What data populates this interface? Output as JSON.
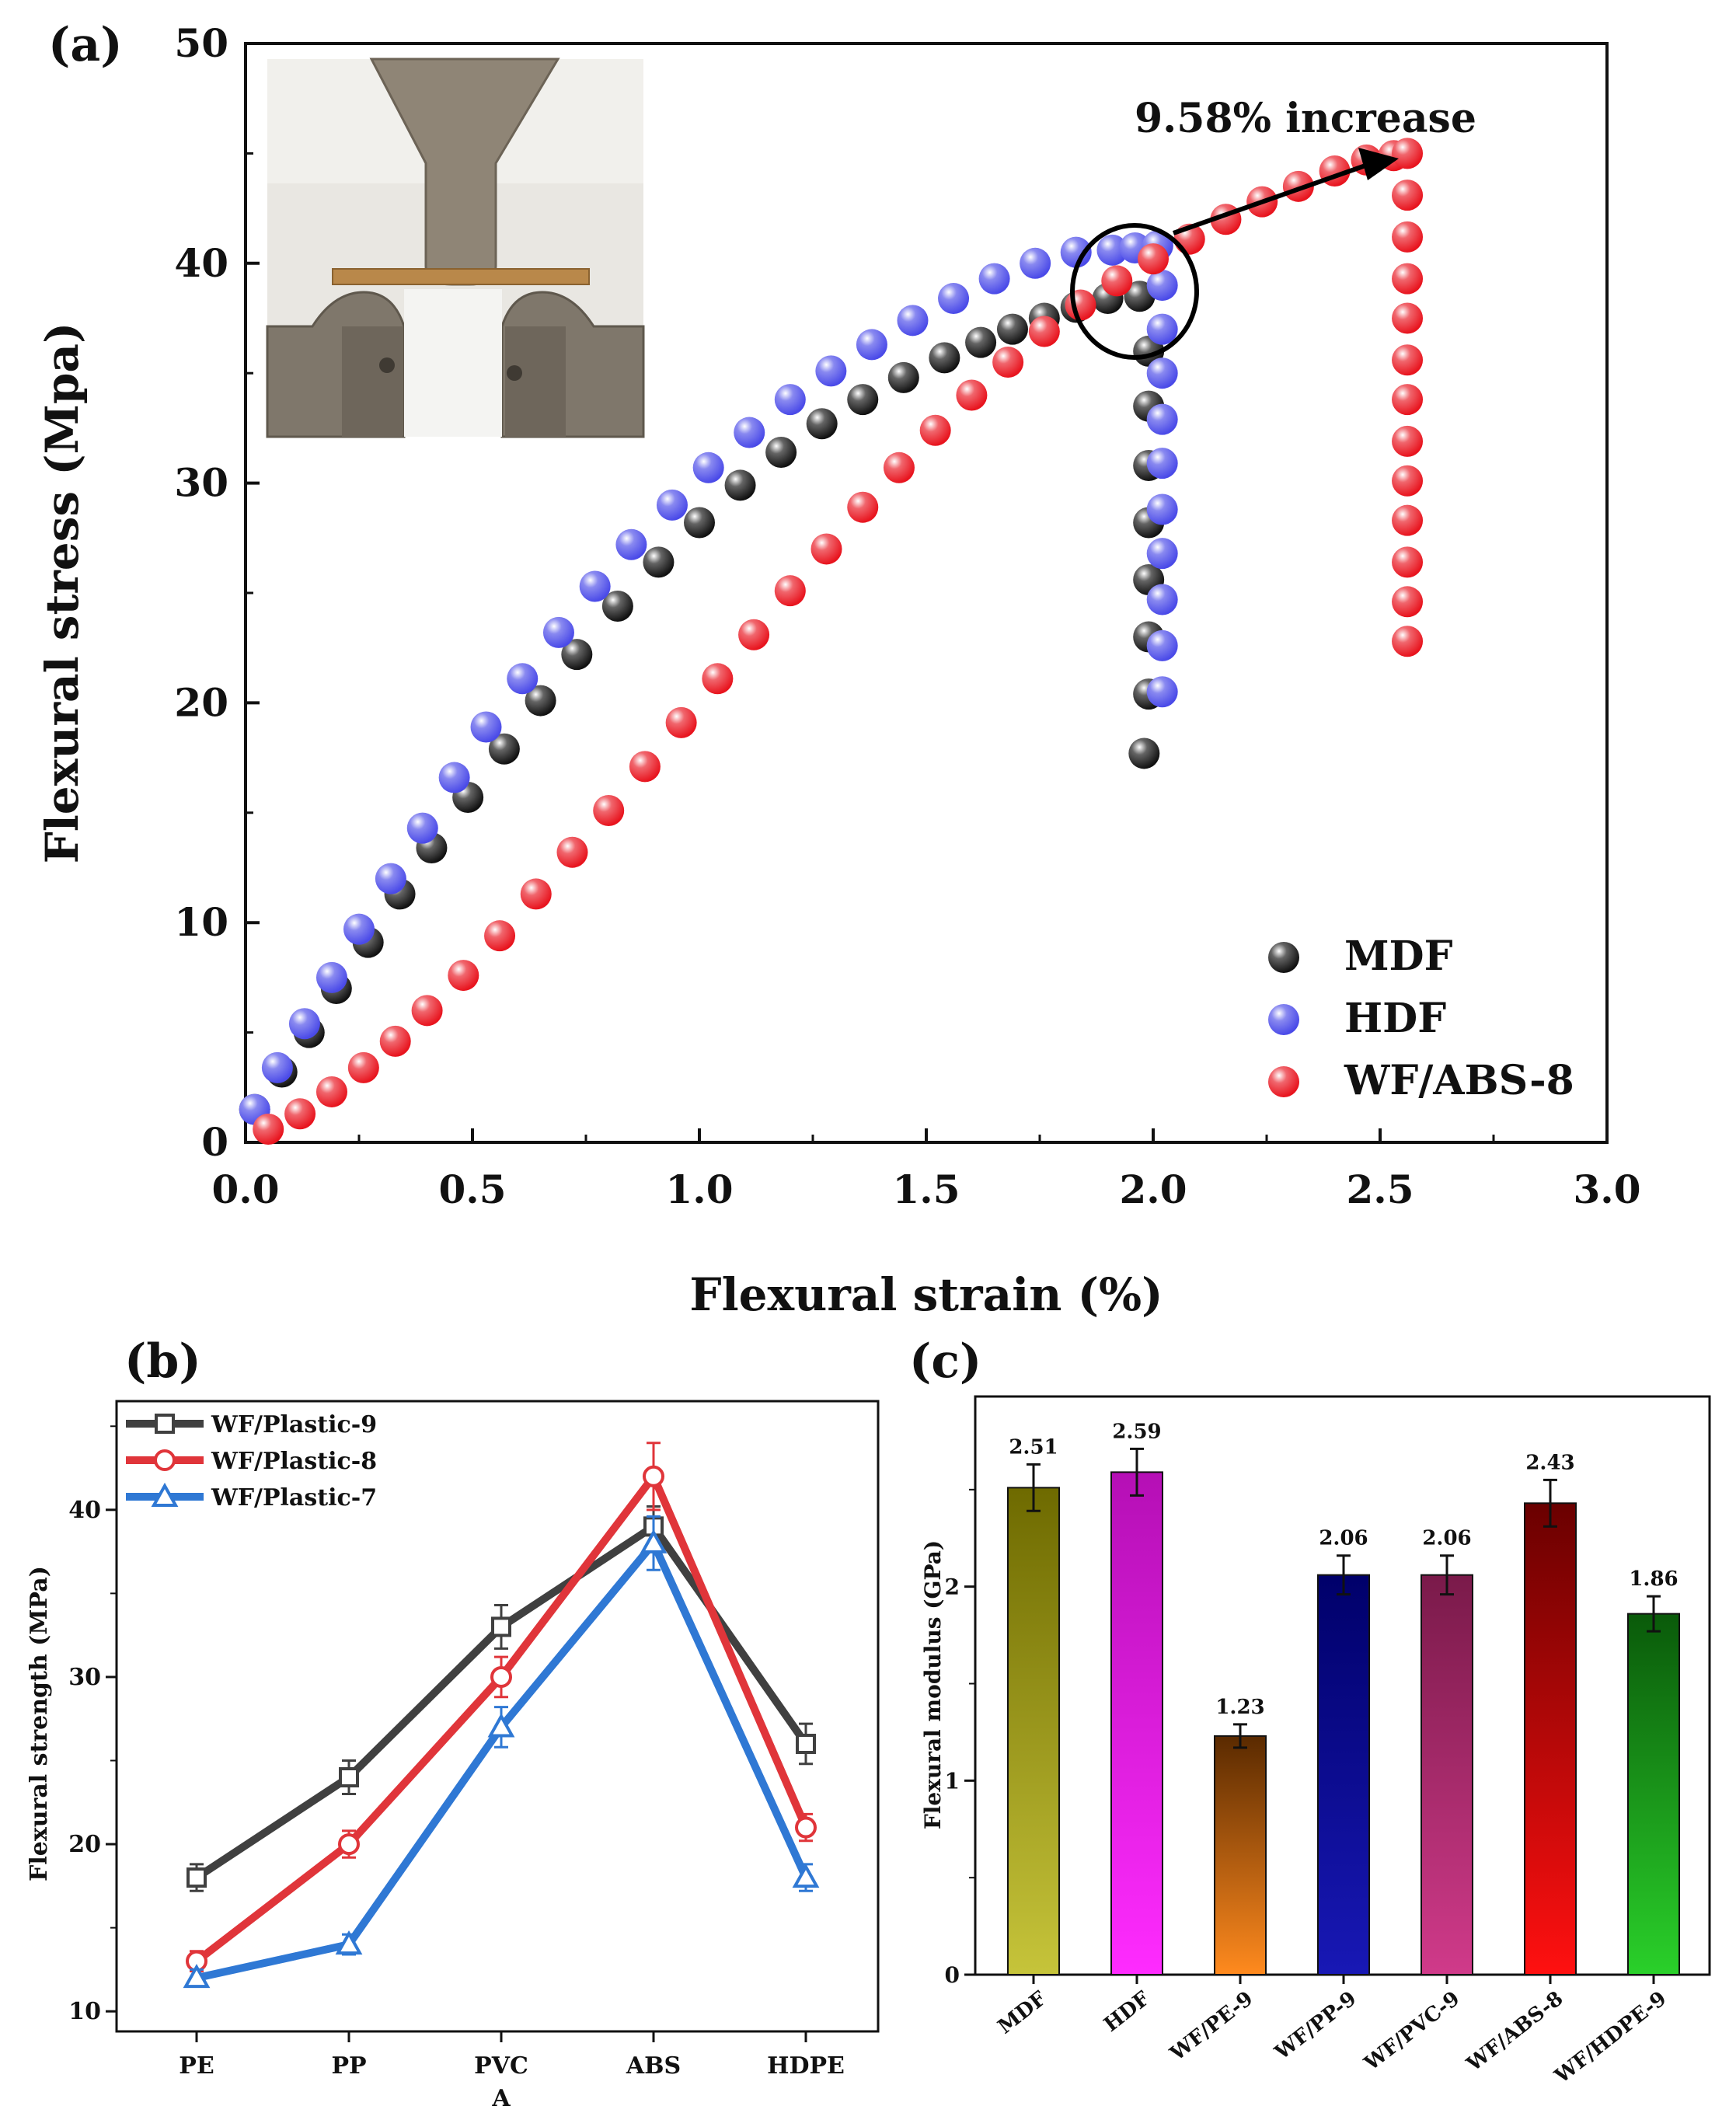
{
  "panels": {
    "a_label": "(a)",
    "b_label": "(b)",
    "c_label": "(c)"
  },
  "chart_data": [
    {
      "panel": "(a)",
      "type": "scatter",
      "title": "",
      "xlabel": "Flexural strain (%)",
      "ylabel": "Flexural stress (Mpa)",
      "xlim": [
        0,
        3.0
      ],
      "ylim": [
        0,
        50
      ],
      "xticks": [
        "0.0",
        "0.5",
        "1.0",
        "1.5",
        "2.0",
        "2.5",
        "3.0"
      ],
      "yticks": [
        "0",
        "10",
        "20",
        "30",
        "40",
        "50"
      ],
      "annotation": "9.58% increase",
      "inset": "photo of three-point bending test fixture with specimen",
      "legend_position": "bottom-right",
      "series": [
        {
          "name": "MDF",
          "color": "#111111",
          "x": [
            0.02,
            0.08,
            0.14,
            0.2,
            0.27,
            0.34,
            0.41,
            0.49,
            0.57,
            0.65,
            0.73,
            0.82,
            0.91,
            1.0,
            1.09,
            1.18,
            1.27,
            1.36,
            1.45,
            1.54,
            1.62,
            1.69,
            1.76,
            1.83,
            1.9,
            1.97,
            1.99,
            1.99,
            1.99,
            1.99,
            1.99,
            1.99,
            1.99,
            1.98
          ],
          "y": [
            1.5,
            3.2,
            5.0,
            7.0,
            9.1,
            11.3,
            13.4,
            15.7,
            17.9,
            20.1,
            22.2,
            24.4,
            26.4,
            28.2,
            29.9,
            31.4,
            32.7,
            33.8,
            34.8,
            35.7,
            36.4,
            37.0,
            37.5,
            38.0,
            38.4,
            38.5,
            36.0,
            33.5,
            30.8,
            28.2,
            25.6,
            23.0,
            20.4,
            17.7
          ]
        },
        {
          "name": "HDF",
          "color": "#4a4ae8",
          "x": [
            0.02,
            0.07,
            0.13,
            0.19,
            0.25,
            0.32,
            0.39,
            0.46,
            0.53,
            0.61,
            0.69,
            0.77,
            0.85,
            0.94,
            1.02,
            1.11,
            1.2,
            1.29,
            1.38,
            1.47,
            1.56,
            1.65,
            1.74,
            1.83,
            1.91,
            1.96,
            2.01,
            2.02,
            2.02,
            2.02,
            2.02,
            2.02,
            2.02,
            2.02,
            2.02,
            2.02,
            2.02
          ],
          "y": [
            1.5,
            3.4,
            5.4,
            7.5,
            9.7,
            12.0,
            14.3,
            16.6,
            18.9,
            21.1,
            23.2,
            25.3,
            27.2,
            29.0,
            30.7,
            32.3,
            33.8,
            35.1,
            36.3,
            37.4,
            38.4,
            39.3,
            40.0,
            40.5,
            40.6,
            40.7,
            40.8,
            39.0,
            37.0,
            35.0,
            32.9,
            30.9,
            28.8,
            26.8,
            24.7,
            22.6,
            20.5
          ]
        },
        {
          "name": "WF/ABS-8",
          "color": "#e8141e",
          "x": [
            0.05,
            0.12,
            0.19,
            0.26,
            0.33,
            0.4,
            0.48,
            0.56,
            0.64,
            0.72,
            0.8,
            0.88,
            0.96,
            1.04,
            1.12,
            1.2,
            1.28,
            1.36,
            1.44,
            1.52,
            1.6,
            1.68,
            1.76,
            1.84,
            1.92,
            2.0,
            2.08,
            2.16,
            2.24,
            2.32,
            2.4,
            2.47,
            2.53,
            2.56,
            2.56,
            2.56,
            2.56,
            2.56,
            2.56,
            2.56,
            2.56,
            2.56,
            2.56,
            2.56,
            2.56,
            2.56
          ],
          "y": [
            0.6,
            1.3,
            2.3,
            3.4,
            4.6,
            6.0,
            7.6,
            9.4,
            11.3,
            13.2,
            15.1,
            17.1,
            19.1,
            21.1,
            23.1,
            25.1,
            27.0,
            28.9,
            30.7,
            32.4,
            34.0,
            35.5,
            36.9,
            38.1,
            39.2,
            40.2,
            41.1,
            42.0,
            42.8,
            43.5,
            44.2,
            44.7,
            44.9,
            45.0,
            43.1,
            41.2,
            39.3,
            37.5,
            35.6,
            33.8,
            31.9,
            30.1,
            28.3,
            26.4,
            24.6,
            22.8
          ]
        }
      ]
    },
    {
      "panel": "(b)",
      "type": "line",
      "title": "",
      "xlabel": "A",
      "ylabel": "Flexural strength (MPa)",
      "categories": [
        "PE",
        "PP",
        "PVC",
        "ABS",
        "HDPE"
      ],
      "ylim": [
        8.8,
        46.5
      ],
      "yticks": [
        "10",
        "20",
        "30",
        "40"
      ],
      "legend_position": "top-left",
      "series": [
        {
          "name": "WF/Plastic-9",
          "color": "#404040",
          "marker": "square",
          "values": [
            18,
            24,
            33,
            39,
            26
          ],
          "errors": [
            0.8,
            1.0,
            1.3,
            1.2,
            1.2
          ]
        },
        {
          "name": "WF/Plastic-8",
          "color": "#e0353a",
          "marker": "circle",
          "values": [
            13,
            20,
            30,
            42,
            21
          ],
          "errors": [
            0.6,
            0.8,
            1.2,
            2.0,
            0.8
          ]
        },
        {
          "name": "WF/Plastic-7",
          "color": "#2f78d4",
          "marker": "triangle",
          "values": [
            12,
            14,
            27,
            38,
            18
          ],
          "errors": [
            0.5,
            0.6,
            1.2,
            1.6,
            0.8
          ]
        }
      ]
    },
    {
      "panel": "(c)",
      "type": "bar",
      "title": "",
      "xlabel": "",
      "ylabel": "Flexural modulus (GPa)",
      "ylim": [
        0,
        2.98
      ],
      "yticks": [
        "0",
        "1",
        "2"
      ],
      "categories": [
        "MDF",
        "HDF",
        "WF/PE-9",
        "WF/PP-9",
        "WF/PVC-9",
        "WF/ABS-8",
        "WF/HDPE-9"
      ],
      "values": [
        2.51,
        2.59,
        1.23,
        2.06,
        2.06,
        2.43,
        1.86
      ],
      "labels": [
        "2.51",
        "2.59",
        "1.23",
        "2.06",
        "2.06",
        "2.43",
        "1.86"
      ],
      "errors": [
        0.12,
        0.12,
        0.06,
        0.1,
        0.1,
        0.12,
        0.09
      ],
      "colors": [
        [
          "#6e6a00",
          "#c6c43a"
        ],
        [
          "#b50fb5",
          "#ff2bff"
        ],
        [
          "#5a2a00",
          "#ff8a1e"
        ],
        [
          "#00006a",
          "#1818b5"
        ],
        [
          "#7a1a4a",
          "#d03a8a"
        ],
        [
          "#6a0000",
          "#ff1010"
        ],
        [
          "#0a5a0a",
          "#2ad02a"
        ]
      ]
    }
  ]
}
